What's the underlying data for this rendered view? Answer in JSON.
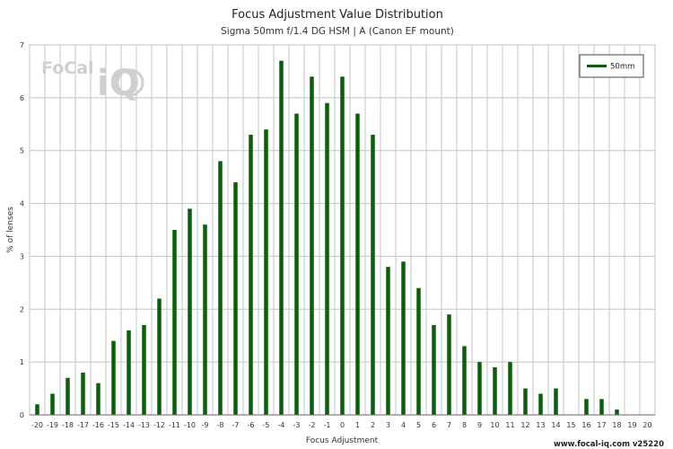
{
  "chart_data": {
    "type": "bar",
    "title": "Focus Adjustment Value Distribution",
    "subtitle": "Sigma 50mm f/1.4 DG HSM | A (Canon EF mount)",
    "xlabel": "Focus Adjustment",
    "ylabel": "% of lenses",
    "ylim": [
      0,
      7
    ],
    "yticks": [
      0,
      1,
      2,
      3,
      4,
      5,
      6,
      7
    ],
    "grid": true,
    "legend_position": "top-right",
    "categories": [
      "-20",
      "-19",
      "-18",
      "-17",
      "-16",
      "-15",
      "-14",
      "-13",
      "-12",
      "-11",
      "-10",
      "-9",
      "-8",
      "-7",
      "-6",
      "-5",
      "-4",
      "-3",
      "-2",
      "-1",
      "0",
      "1",
      "2",
      "3",
      "4",
      "5",
      "6",
      "7",
      "8",
      "9",
      "10",
      "11",
      "12",
      "13",
      "14",
      "15",
      "16",
      "17",
      "18",
      "19",
      "20"
    ],
    "series": [
      {
        "name": "50mm",
        "color": "#0b5e0b",
        "values": [
          0.2,
          0.4,
          0.7,
          0.8,
          0.6,
          1.4,
          1.6,
          1.7,
          2.2,
          3.5,
          3.9,
          3.6,
          4.8,
          4.4,
          5.3,
          5.4,
          6.7,
          5.7,
          6.4,
          5.9,
          6.4,
          5.7,
          5.3,
          2.8,
          2.9,
          2.4,
          1.7,
          1.9,
          1.3,
          1.0,
          0.9,
          1.0,
          0.5,
          0.4,
          0.5,
          0,
          0.3,
          0.3,
          0.1,
          0,
          0
        ]
      }
    ]
  },
  "logo": {
    "text_left": "FoCal",
    "text_iq": "iQ"
  },
  "footer": "www.focal-iq.com  v25220"
}
